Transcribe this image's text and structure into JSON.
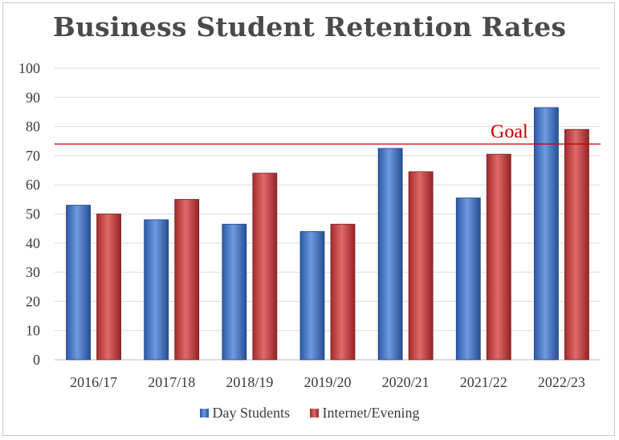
{
  "chart_data": {
    "type": "bar",
    "title": "Business Student Retention Rates",
    "categories": [
      "2016/17",
      "2017/18",
      "2018/19",
      "2019/20",
      "2020/21",
      "2021/22",
      "2022/23"
    ],
    "series": [
      {
        "name": "Day Students",
        "values": [
          53,
          48,
          46.5,
          44,
          72.5,
          55.5,
          86.5
        ],
        "color": "#3a6fc4"
      },
      {
        "name": "Internet/Evening",
        "values": [
          50,
          55,
          64,
          46.5,
          64.5,
          70.5,
          79
        ],
        "color": "#c0393b"
      }
    ],
    "ylim": [
      0,
      100
    ],
    "yticks": [
      0,
      10,
      20,
      30,
      40,
      50,
      60,
      70,
      80,
      90,
      100
    ],
    "gridlines": true,
    "goal": {
      "label": "Goal",
      "value": 74,
      "color": "#c00000"
    },
    "legend_position": "bottom"
  }
}
